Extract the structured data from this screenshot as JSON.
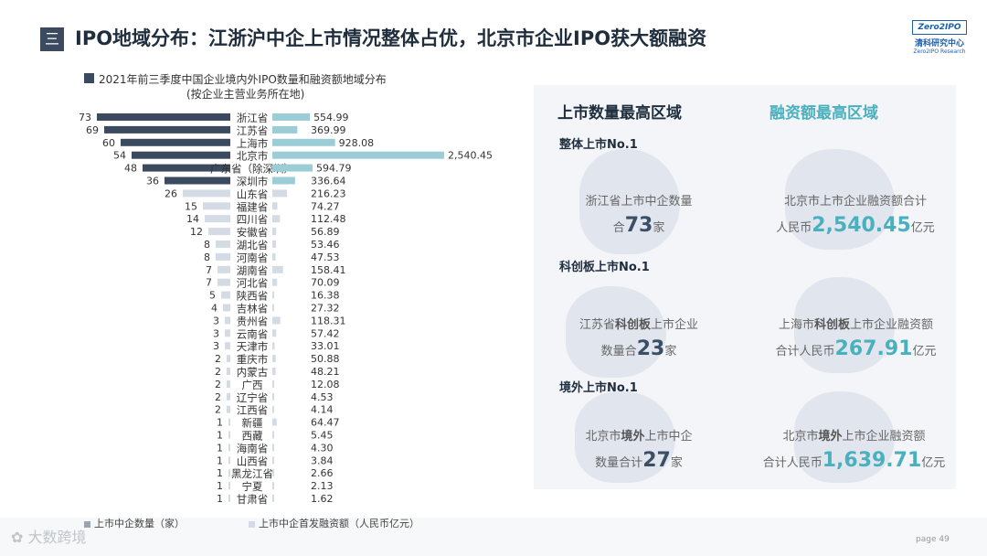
{
  "header": {
    "title": "IPO地域分布：江浙沪中企上市情况整体占优，北京市企业IPO获大额融资",
    "menu_glyph": "三"
  },
  "logo": {
    "brand": "Zero2IPO",
    "cn": "清科研究中心",
    "en": "Zero2IPO Research"
  },
  "chart_data": {
    "type": "bar",
    "title": "2021年前三季度中国企业境内外IPO数量和融资额地域分布",
    "subtitle": "(按企业主营业务所在地)",
    "categories": [
      "浙江省",
      "江苏省",
      "上海市",
      "北京市",
      "广东省（除深圳）",
      "深圳市",
      "山东省",
      "福建省",
      "四川省",
      "安徽省",
      "湖北省",
      "河南省",
      "湖南省",
      "河北省",
      "陕西省",
      "吉林省",
      "贵州省",
      "云南省",
      "天津市",
      "重庆市",
      "内蒙古",
      "广西",
      "辽宁省",
      "江西省",
      "新疆",
      "西藏",
      "海南省",
      "山西省",
      "黑龙江省",
      "宁夏",
      "甘肃省"
    ],
    "series": [
      {
        "name": "上市中企数量（家）",
        "color": "#3b4a5e",
        "values": [
          73,
          69,
          60,
          54,
          48,
          36,
          26,
          15,
          14,
          12,
          8,
          8,
          7,
          7,
          5,
          4,
          3,
          3,
          3,
          2,
          2,
          2,
          2,
          2,
          1,
          1,
          1,
          1,
          1,
          1,
          1
        ]
      },
      {
        "name": "上市中企首发融资额（人民币亿元）",
        "color": "#9ccdd6",
        "values": [
          554.99,
          369.99,
          928.08,
          2540.45,
          594.79,
          336.64,
          216.23,
          74.27,
          112.48,
          56.89,
          53.46,
          47.53,
          158.41,
          70.09,
          16.38,
          27.32,
          118.31,
          57.42,
          33.01,
          50.88,
          48.21,
          12.08,
          4.53,
          4.14,
          64.47,
          5.45,
          4.3,
          3.84,
          2.66,
          2.13,
          1.62
        ]
      }
    ],
    "count_labels": [
      "73",
      "69",
      "60",
      "54",
      "48",
      "36",
      "26",
      "15",
      "14",
      "12",
      "8",
      "8",
      "7",
      "7",
      "5",
      "4",
      "3",
      "3",
      "3",
      "2",
      "2",
      "2",
      "2",
      "2",
      "1",
      "1",
      "1",
      "1",
      "1",
      "1",
      "1"
    ],
    "amount_labels": [
      "554.99",
      "369.99",
      "928.08",
      "2,540.45",
      "594.79",
      "336.64",
      "216.23",
      "74.27",
      "112.48",
      "56.89",
      "53.46",
      "47.53",
      "158.41",
      "70.09",
      "16.38",
      "27.32",
      "118.31",
      "57.42",
      "33.01",
      "50.88",
      "48.21",
      "12.08",
      "4.53",
      "4.14",
      "64.47",
      "5.45",
      "4.30",
      "3.84",
      "2.66",
      "2.13",
      "1.62"
    ],
    "top_n_highlight": 6,
    "light_color": "#d5dbe4"
  },
  "legend": {
    "count": "上市中企数量（家）",
    "amount": "上市中企首发融资额（人民币亿元）"
  },
  "panel": {
    "head_left": "上市数量最高区域",
    "head_right": "融资额最高区域",
    "sec1": {
      "title": "整体上市No.1",
      "left_line1": "浙江省上市中企数量",
      "left_pre": "合",
      "left_num": "73",
      "left_post": "家",
      "right_line1": "北京市上市企业融资额合计",
      "right_pre": "人民币",
      "right_num": "2,540.45",
      "right_post": "亿元"
    },
    "sec2": {
      "title": "科创板上市No.1",
      "left_a": "江苏省",
      "left_hl": "科创板",
      "left_b": "上市企业",
      "left_pre": "数量合",
      "left_num": "23",
      "left_post": "家",
      "right_a": "上海市",
      "right_hl": "科创板",
      "right_b": "上市企业融资额",
      "right_pre": "合计人民币",
      "right_num": "267.91",
      "right_post": "亿元"
    },
    "sec3": {
      "title": "境外上市No.1",
      "left_a": "北京市",
      "left_hl": "境外",
      "left_b": "上市中企",
      "left_pre": "数量合计",
      "left_num": "27",
      "left_post": "家",
      "right_a": "北京市",
      "right_hl": "境外",
      "right_b": "上市企业融资额",
      "right_pre": "合计人民币",
      "right_num": "1,639.71",
      "right_post": "亿元"
    }
  },
  "footer": {
    "watermark": "大数跨境",
    "page": "page  49"
  }
}
